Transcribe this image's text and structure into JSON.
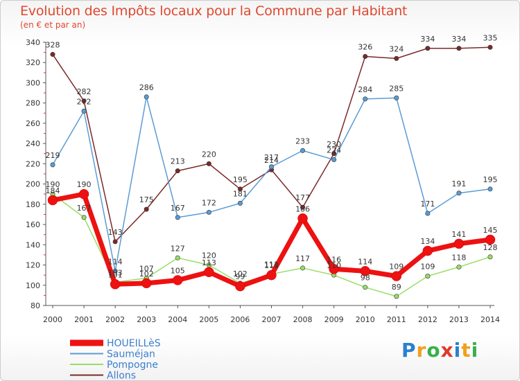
{
  "header": {
    "title": "Evolution des Impôts locaux pour la Commune par Habitant",
    "subtitle": "(en € et par an)"
  },
  "logo": {
    "letters": [
      "P",
      "r",
      "o",
      "x",
      "i",
      "t",
      "i"
    ],
    "colors": [
      "#2a7fd0",
      "#f0a020",
      "#38b04a",
      "#e03a2a",
      "#2a7fd0",
      "#f0a020",
      "#38b04a"
    ]
  },
  "chart_data": {
    "type": "line",
    "title": "Evolution des Impôts locaux pour la Commune par Habitant",
    "subtitle": "(en € et par an)",
    "x": [
      "2000",
      "2001",
      "2002",
      "2003",
      "2004",
      "2005",
      "2006",
      "2007",
      "2008",
      "2009",
      "2010",
      "2011",
      "2012",
      "2013",
      "2014"
    ],
    "ylim": [
      80,
      340
    ],
    "yticks": [
      80,
      100,
      120,
      140,
      160,
      180,
      200,
      220,
      240,
      260,
      280,
      300,
      320,
      340
    ],
    "grid": false,
    "legend": "bottom-left",
    "series": [
      {
        "name": "HOUEILLèS",
        "color": "#ee1111",
        "values": [
          184,
          190,
          101,
          102,
          105,
          113,
          99,
          110,
          166,
          116,
          114,
          109,
          134,
          141,
          145
        ]
      },
      {
        "name": "Sauméjan",
        "color": "#5b9bd5",
        "values": [
          219,
          272,
          114,
          286,
          167,
          172,
          181,
          217,
          233,
          224,
          284,
          285,
          171,
          191,
          195
        ]
      },
      {
        "name": "Pompogne",
        "color": "#99dd66",
        "values": [
          190,
          167,
          103,
          107,
          127,
          120,
          102,
          111,
          117,
          110,
          98,
          89,
          109,
          118,
          128
        ]
      },
      {
        "name": "Allons",
        "color": "#7a2a2a",
        "values": [
          328,
          282,
          143,
          175,
          213,
          220,
          195,
          214,
          177,
          230,
          326,
          324,
          334,
          334,
          335
        ]
      }
    ]
  }
}
